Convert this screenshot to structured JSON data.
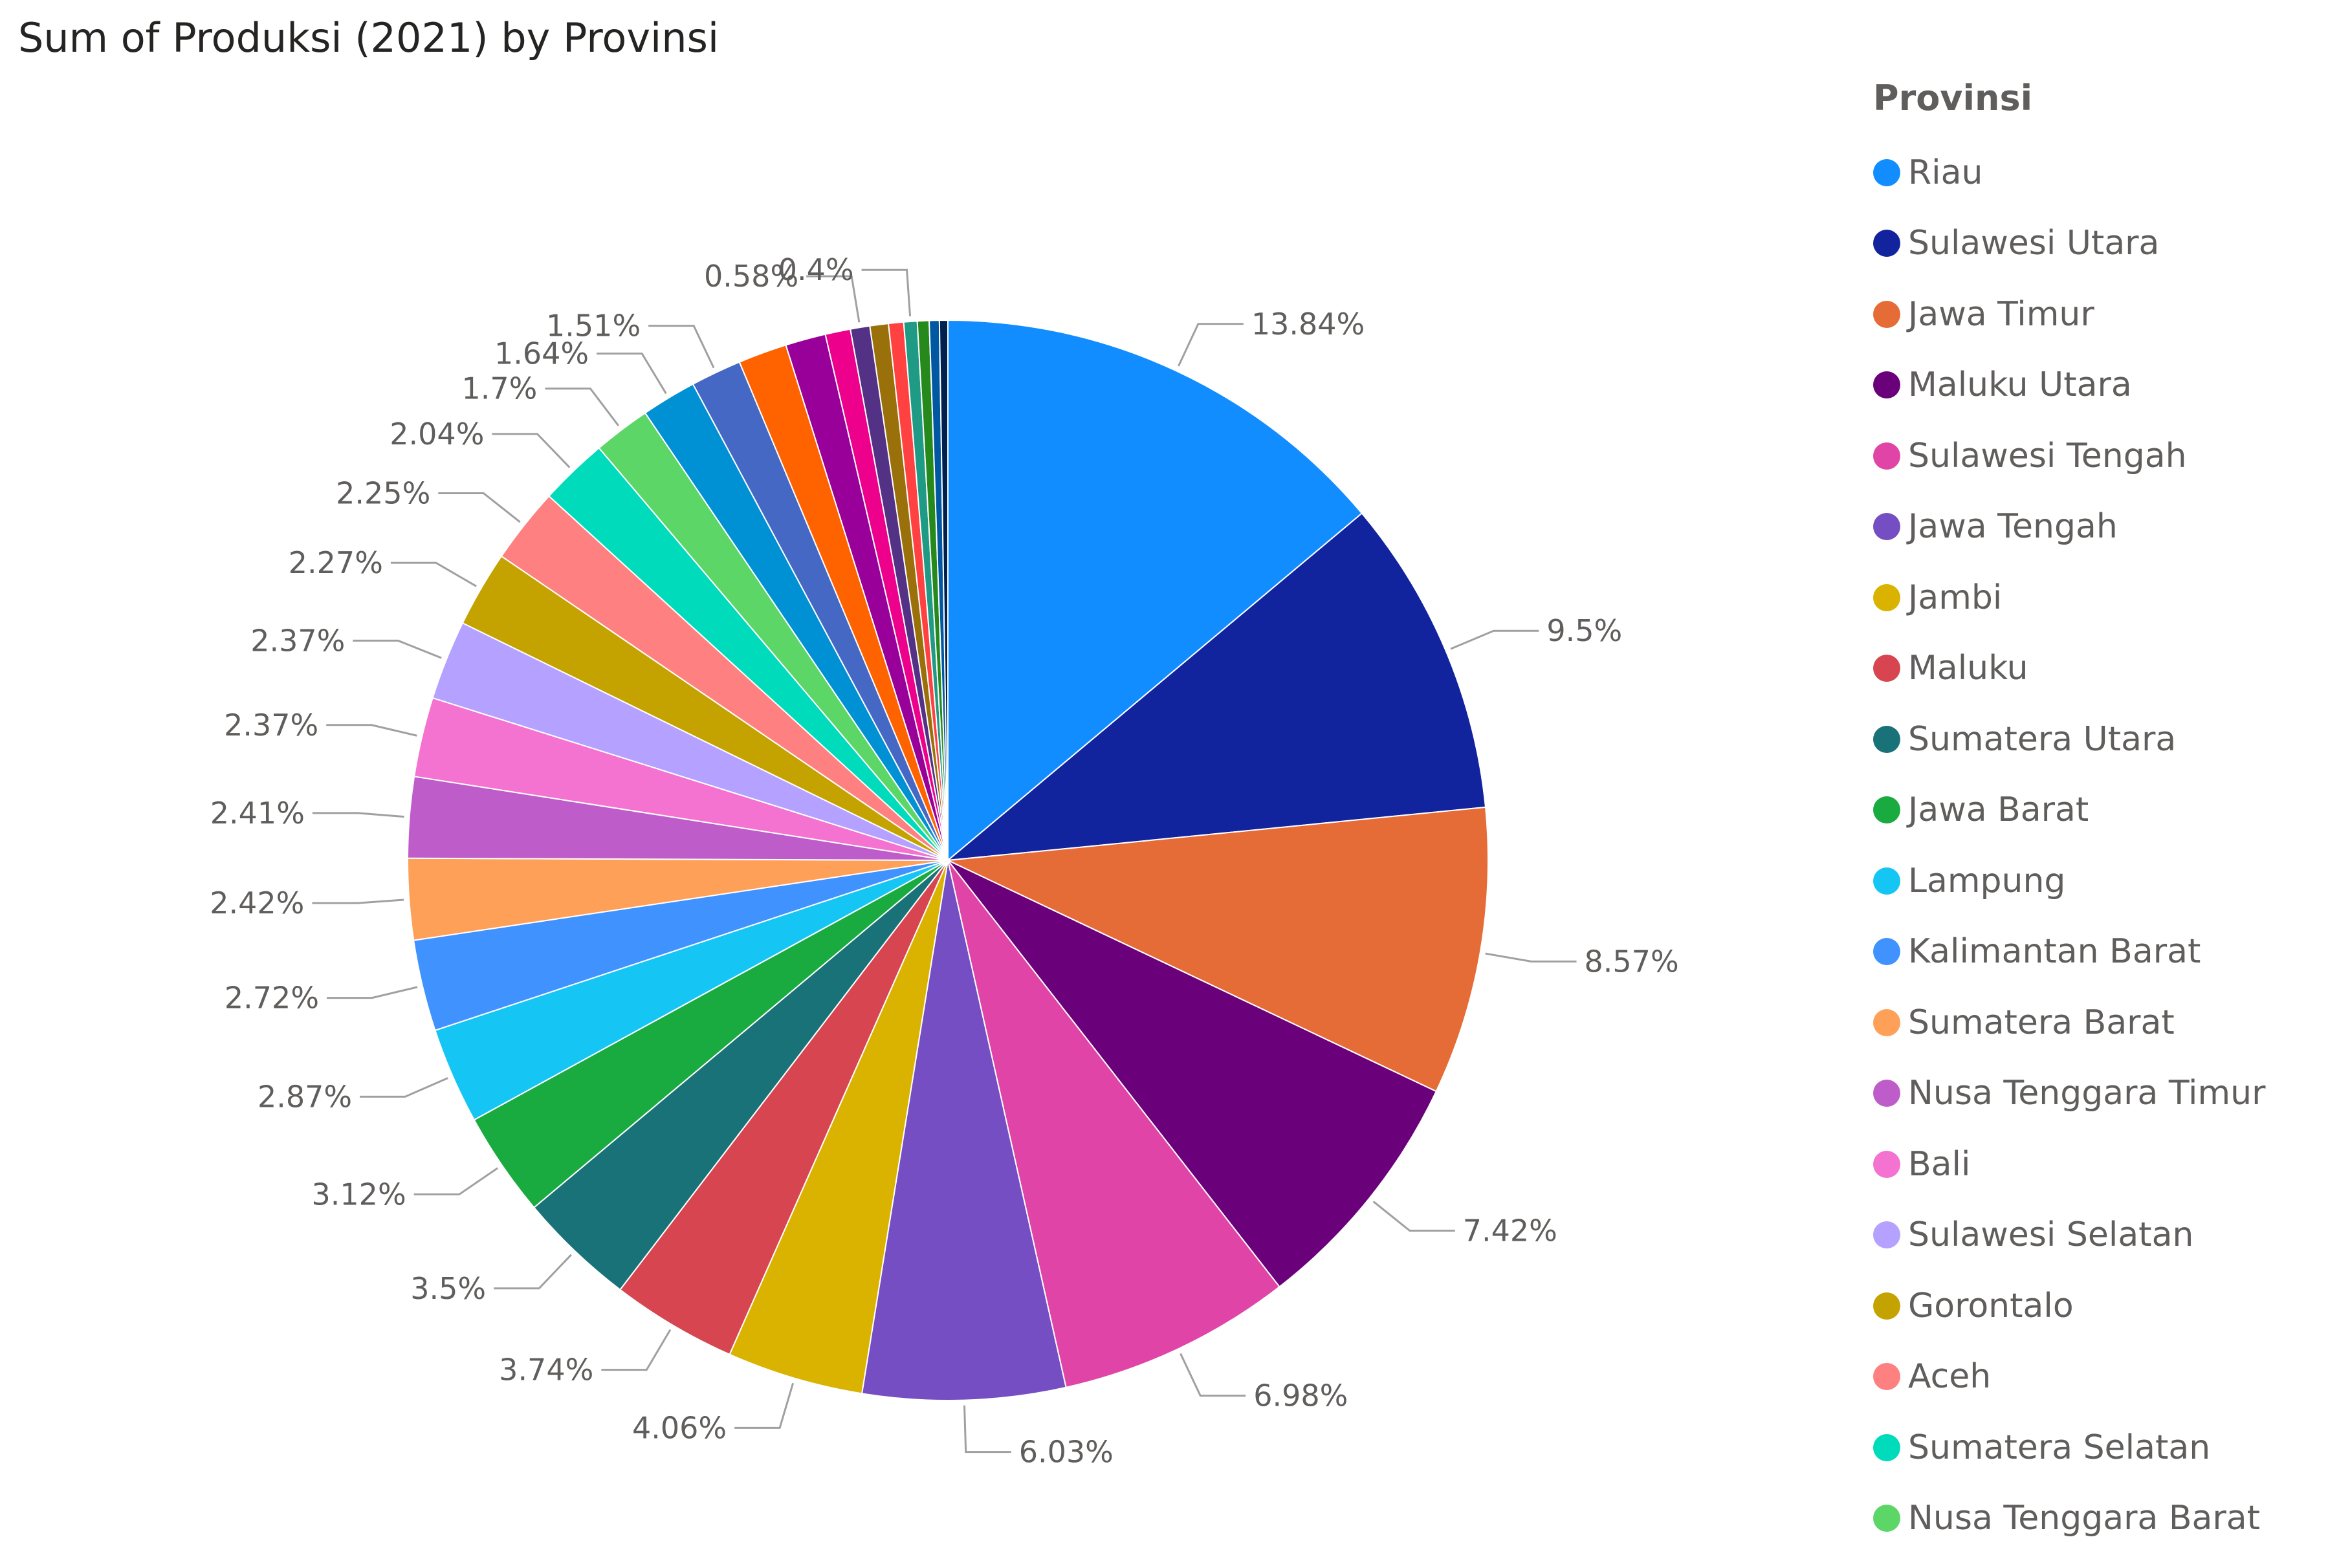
{
  "chart_data": {
    "type": "pie",
    "title": "Sum of Produksi (2021) by Provinsi",
    "legend_title": "Provinsi",
    "legend_position": "right",
    "slices": [
      {
        "label": "Riau",
        "value": 13.84,
        "value_label": "13.84%",
        "color": "#118DFF",
        "in_legend": true
      },
      {
        "label": "Sulawesi Utara",
        "value": 9.5,
        "value_label": "9.5%",
        "color": "#12239E",
        "in_legend": true
      },
      {
        "label": "Jawa Timur",
        "value": 8.57,
        "value_label": "8.57%",
        "color": "#E66C37",
        "in_legend": true
      },
      {
        "label": "Maluku Utara",
        "value": 7.42,
        "value_label": "7.42%",
        "color": "#6B007B",
        "in_legend": true
      },
      {
        "label": "Sulawesi Tengah",
        "value": 6.98,
        "value_label": "6.98%",
        "color": "#E044A7",
        "in_legend": true
      },
      {
        "label": "Jawa Tengah",
        "value": 6.03,
        "value_label": "6.03%",
        "color": "#744EC2",
        "in_legend": true
      },
      {
        "label": "Jambi",
        "value": 4.06,
        "value_label": "4.06%",
        "color": "#D9B300",
        "in_legend": true
      },
      {
        "label": "Maluku",
        "value": 3.74,
        "value_label": "3.74%",
        "color": "#D64550",
        "in_legend": true
      },
      {
        "label": "Sumatera Utara",
        "value": 3.5,
        "value_label": "3.5%",
        "color": "#197278",
        "in_legend": true
      },
      {
        "label": "Jawa Barat",
        "value": 3.12,
        "value_label": "3.12%",
        "color": "#1AAB40",
        "in_legend": true
      },
      {
        "label": "Lampung",
        "value": 2.87,
        "value_label": "2.87%",
        "color": "#15C6F4",
        "in_legend": true
      },
      {
        "label": "Kalimantan Barat",
        "value": 2.72,
        "value_label": "2.72%",
        "color": "#4092FF",
        "in_legend": true
      },
      {
        "label": "Sumatera Barat",
        "value": 2.42,
        "value_label": "2.42%",
        "color": "#FFA058",
        "in_legend": true
      },
      {
        "label": "Nusa Tenggara Timur",
        "value": 2.41,
        "value_label": "2.41%",
        "color": "#BE5DC9",
        "in_legend": true
      },
      {
        "label": "Bali",
        "value": 2.37,
        "value_label": "2.37%",
        "color": "#F472D0",
        "in_legend": true
      },
      {
        "label": "Sulawesi Selatan",
        "value": 2.37,
        "value_label": "2.37%",
        "color": "#B5A1FF",
        "in_legend": true
      },
      {
        "label": "Gorontalo",
        "value": 2.27,
        "value_label": "2.27%",
        "color": "#C4A200",
        "in_legend": true
      },
      {
        "label": "Aceh",
        "value": 2.25,
        "value_label": "2.25%",
        "color": "#FF8080",
        "in_legend": true
      },
      {
        "label": "Sumatera Selatan",
        "value": 2.04,
        "value_label": "2.04%",
        "color": "#00DBBC",
        "in_legend": true
      },
      {
        "label": "Nusa Tenggara Barat",
        "value": 1.7,
        "value_label": "1.7%",
        "color": "#5BD667",
        "in_legend": true
      },
      {
        "label": "",
        "value": 1.64,
        "value_label": "1.64%",
        "color": "#0091D5",
        "in_legend": false
      },
      {
        "label": "",
        "value": 1.51,
        "value_label": "1.51%",
        "color": "#4668C5",
        "in_legend": false
      },
      {
        "label": "",
        "value": 1.45,
        "value_label": "",
        "color": "#FF6300",
        "in_legend": false
      },
      {
        "label": "",
        "value": 1.2,
        "value_label": "",
        "color": "#99009A",
        "in_legend": false
      },
      {
        "label": "",
        "value": 0.75,
        "value_label": "",
        "color": "#EC008C",
        "in_legend": false
      },
      {
        "label": "",
        "value": 0.58,
        "value_label": "0.58%",
        "color": "#533285",
        "in_legend": false
      },
      {
        "label": "",
        "value": 0.55,
        "value_label": "",
        "color": "#99700A",
        "in_legend": false
      },
      {
        "label": "",
        "value": 0.45,
        "value_label": "",
        "color": "#FF4141",
        "in_legend": false
      },
      {
        "label": "",
        "value": 0.4,
        "value_label": "0.4%",
        "color": "#1F9A85",
        "in_legend": false
      },
      {
        "label": "",
        "value": 0.35,
        "value_label": "",
        "color": "#25891C",
        "in_legend": false
      },
      {
        "label": "",
        "value": 0.3,
        "value_label": "",
        "color": "#0057A2",
        "in_legend": false
      },
      {
        "label": "",
        "value": 0.25,
        "value_label": "",
        "color": "#002050",
        "in_legend": false
      }
    ]
  }
}
